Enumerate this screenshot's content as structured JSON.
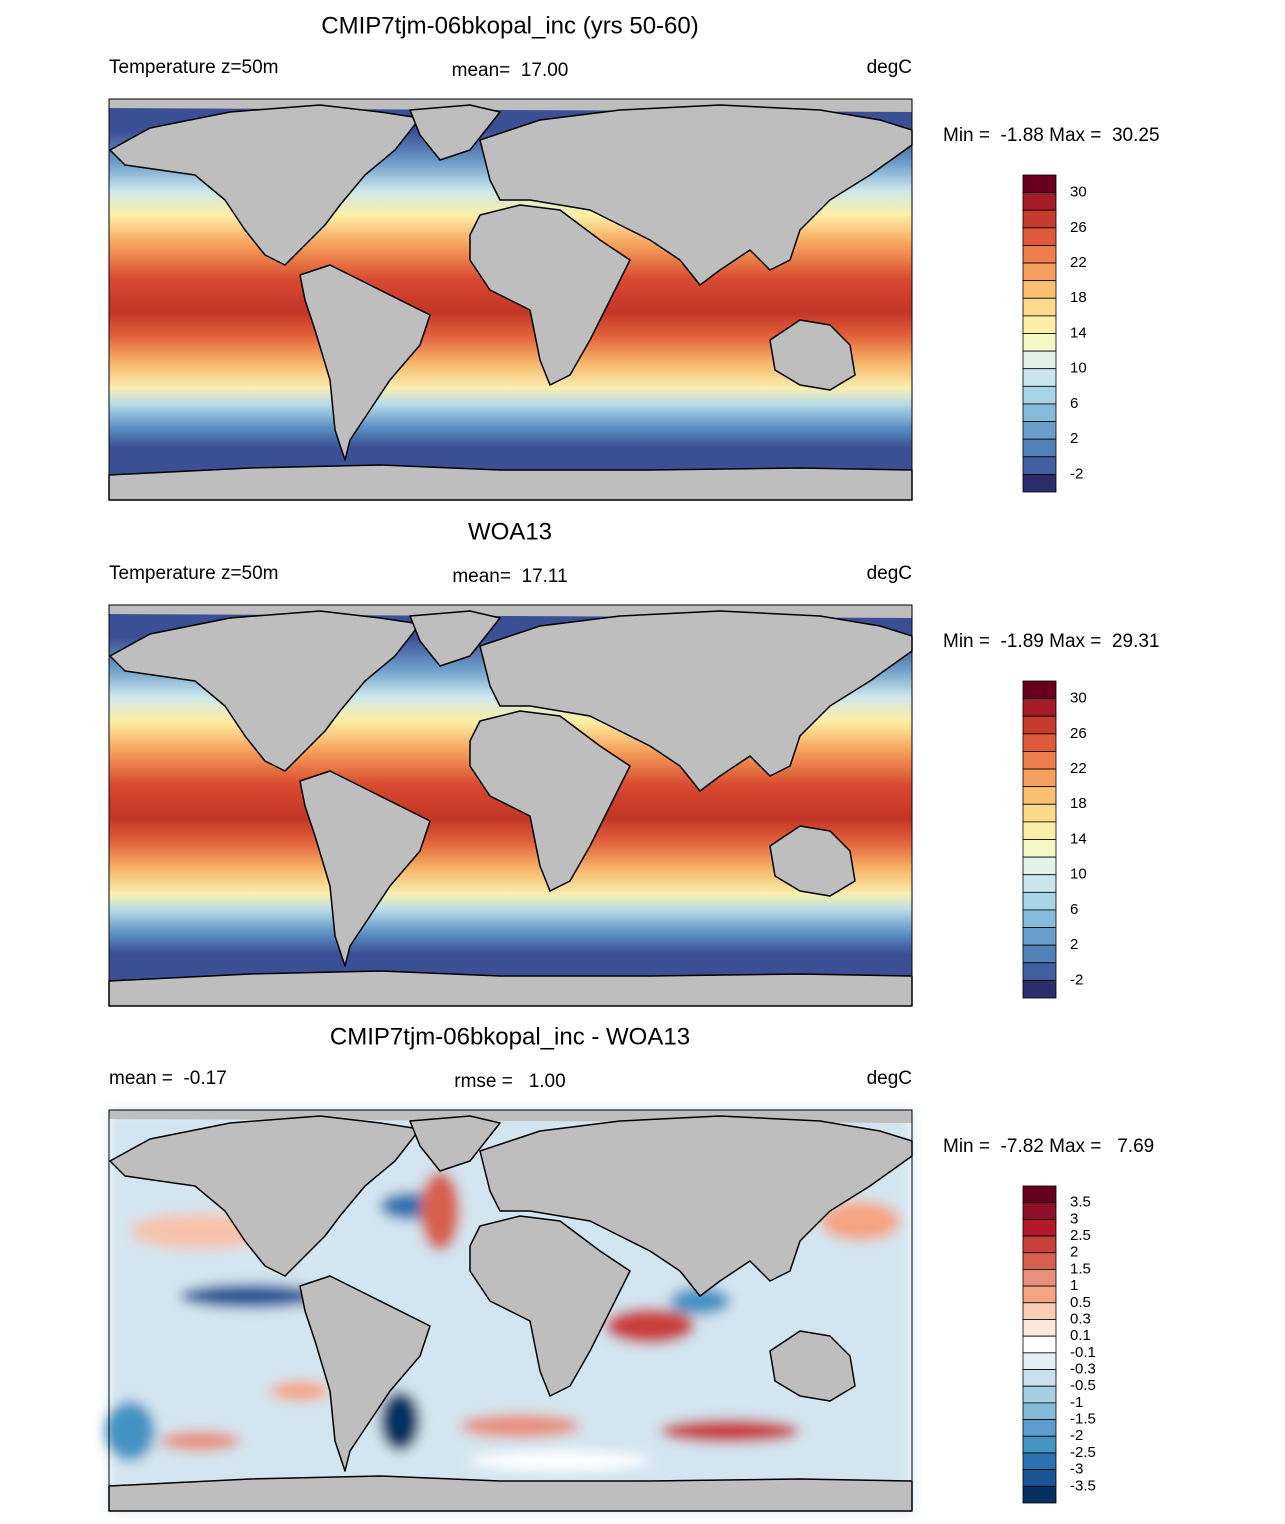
{
  "panels": [
    {
      "title": "CMIP7tjm-06bkopal_inc (yrs 50-60)",
      "left_label": "Temperature z=50m",
      "center_label": "mean=  17.00",
      "units": "degC",
      "min_max": "Min =  -1.88 Max =  30.25",
      "colorbar": {
        "labels": [
          30,
          26,
          22,
          18,
          14,
          10,
          6,
          2,
          -2
        ],
        "colors": [
          "#67001f",
          "#a51b27",
          "#c83a2e",
          "#de5a3b",
          "#ee7e4c",
          "#f6a05e",
          "#fbbf72",
          "#fcd98b",
          "#fdeea6",
          "#f6f8c6",
          "#e3f2e8",
          "#c9e6ee",
          "#a9d4e6",
          "#86bcdb",
          "#6a9fcb",
          "#5281b8",
          "#40609f",
          "#2b2d6a"
        ]
      }
    },
    {
      "title": "WOA13",
      "left_label": "Temperature z=50m",
      "center_label": "mean=  17.11",
      "units": "degC",
      "min_max": "Min =  -1.89 Max =  29.31",
      "colorbar": {
        "labels": [
          30,
          26,
          22,
          18,
          14,
          10,
          6,
          2,
          -2
        ],
        "colors": [
          "#67001f",
          "#a51b27",
          "#c83a2e",
          "#de5a3b",
          "#ee7e4c",
          "#f6a05e",
          "#fbbf72",
          "#fcd98b",
          "#fdeea6",
          "#f6f8c6",
          "#e3f2e8",
          "#c9e6ee",
          "#a9d4e6",
          "#86bcdb",
          "#6a9fcb",
          "#5281b8",
          "#40609f",
          "#2b2d6a"
        ]
      }
    },
    {
      "title": "CMIP7tjm-06bkopal_inc - WOA13",
      "left_label": "mean =  -0.17",
      "center_label": "rmse =   1.00",
      "units": "degC",
      "min_max": "Min =  -7.82 Max =   7.69",
      "colorbar": {
        "labels": [
          3.5,
          3,
          2.5,
          2,
          1.5,
          1,
          0.5,
          0.3,
          0.1,
          -0.1,
          -0.3,
          -0.5,
          -1,
          -1.5,
          -2,
          -2.5,
          -3,
          -3.5
        ],
        "colors": [
          "#67001f",
          "#8f1029",
          "#b2182b",
          "#c8403e",
          "#d6604d",
          "#e7917a",
          "#f4a582",
          "#f9cdb6",
          "#fde6da",
          "#ffffff",
          "#e3eef5",
          "#c9e0ee",
          "#a7cfe4",
          "#86bad9",
          "#5e9dcb",
          "#4393c3",
          "#2d72b0",
          "#1a5596",
          "#053061"
        ]
      }
    }
  ]
}
